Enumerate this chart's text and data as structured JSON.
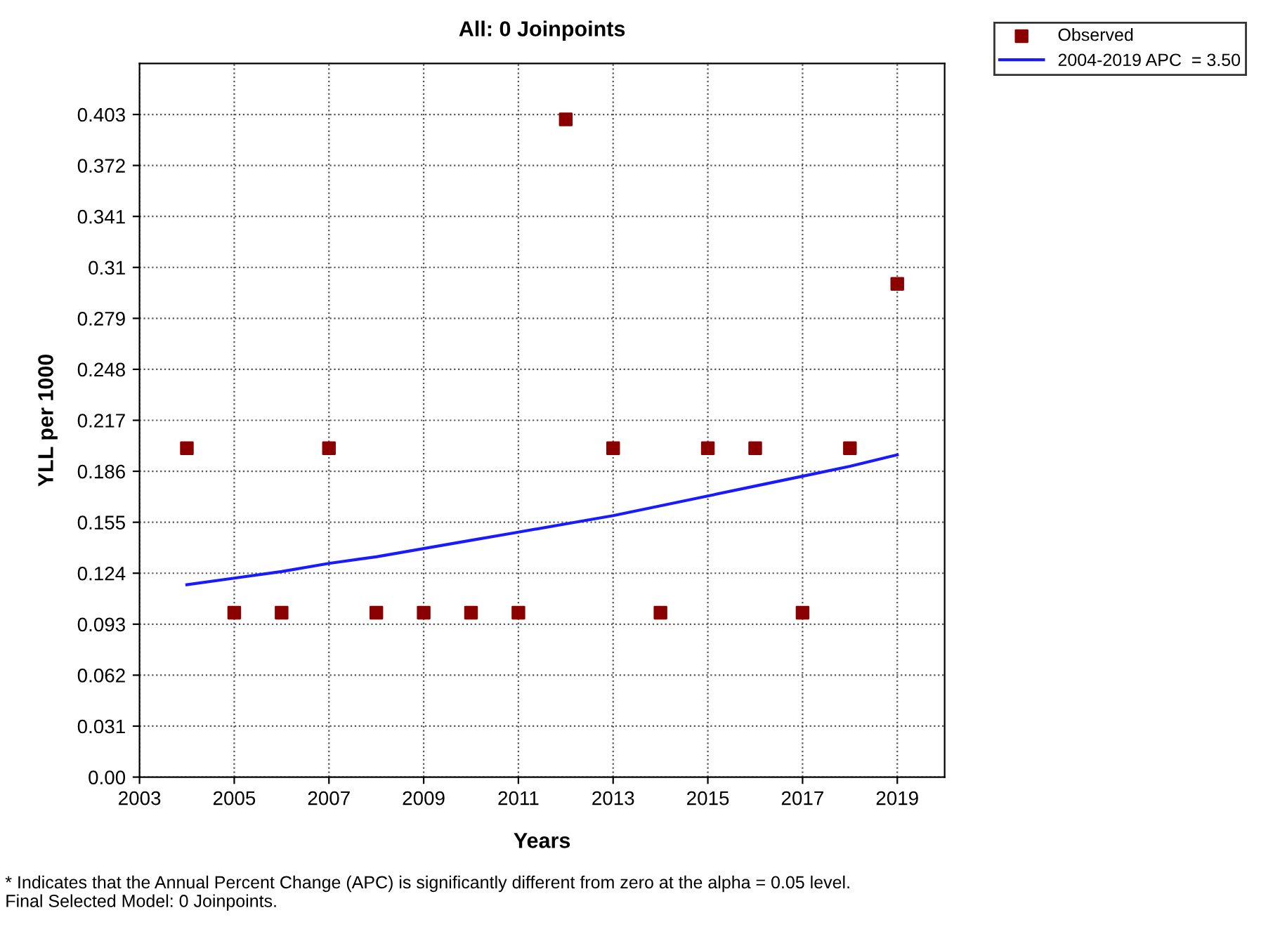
{
  "chart_data": {
    "type": "scatter",
    "title": "All: 0 Joinpoints",
    "xlabel": "Years",
    "ylabel": "YLL per 1000",
    "series": [
      {
        "name": "Observed",
        "color": "#8b0000",
        "marker": "square",
        "x": [
          2004,
          2005,
          2006,
          2007,
          2008,
          2009,
          2010,
          2011,
          2012,
          2013,
          2014,
          2015,
          2016,
          2017,
          2018,
          2019
        ],
        "values": [
          0.2,
          0.1,
          0.1,
          0.2,
          0.1,
          0.1,
          0.1,
          0.1,
          0.4,
          0.2,
          0.1,
          0.2,
          0.2,
          0.1,
          0.2,
          0.3
        ]
      },
      {
        "name": "2004-2019 APC  = 3.50",
        "type": "line",
        "color": "#1a1aff",
        "line_style": "solid",
        "x": [
          2004,
          2005,
          2006,
          2007,
          2008,
          2009,
          2010,
          2011,
          2012,
          2013,
          2014,
          2015,
          2016,
          2017,
          2018,
          2019
        ],
        "values": [
          0.117,
          0.121,
          0.125,
          0.13,
          0.134,
          0.139,
          0.144,
          0.149,
          0.154,
          0.159,
          0.165,
          0.171,
          0.177,
          0.183,
          0.189,
          0.196
        ]
      }
    ],
    "xlim": [
      2003,
      2020
    ],
    "xticks": [
      2003,
      2005,
      2007,
      2009,
      2011,
      2013,
      2015,
      2017,
      2019
    ],
    "ylim": [
      0,
      0.434
    ],
    "yticks": [
      {
        "value": 0,
        "label": "0.00"
      },
      0.031,
      0.062,
      0.093,
      0.124,
      0.155,
      0.186,
      0.217,
      0.248,
      0.279,
      0.31,
      0.341,
      0.372,
      0.403
    ],
    "grid": true,
    "legend": "top right",
    "annotations": [
      "* Indicates that the Annual Percent Change (APC) is significantly different from zero at the alpha = 0.05 level.",
      "Final Selected Model: 0 Joinpoints."
    ]
  }
}
